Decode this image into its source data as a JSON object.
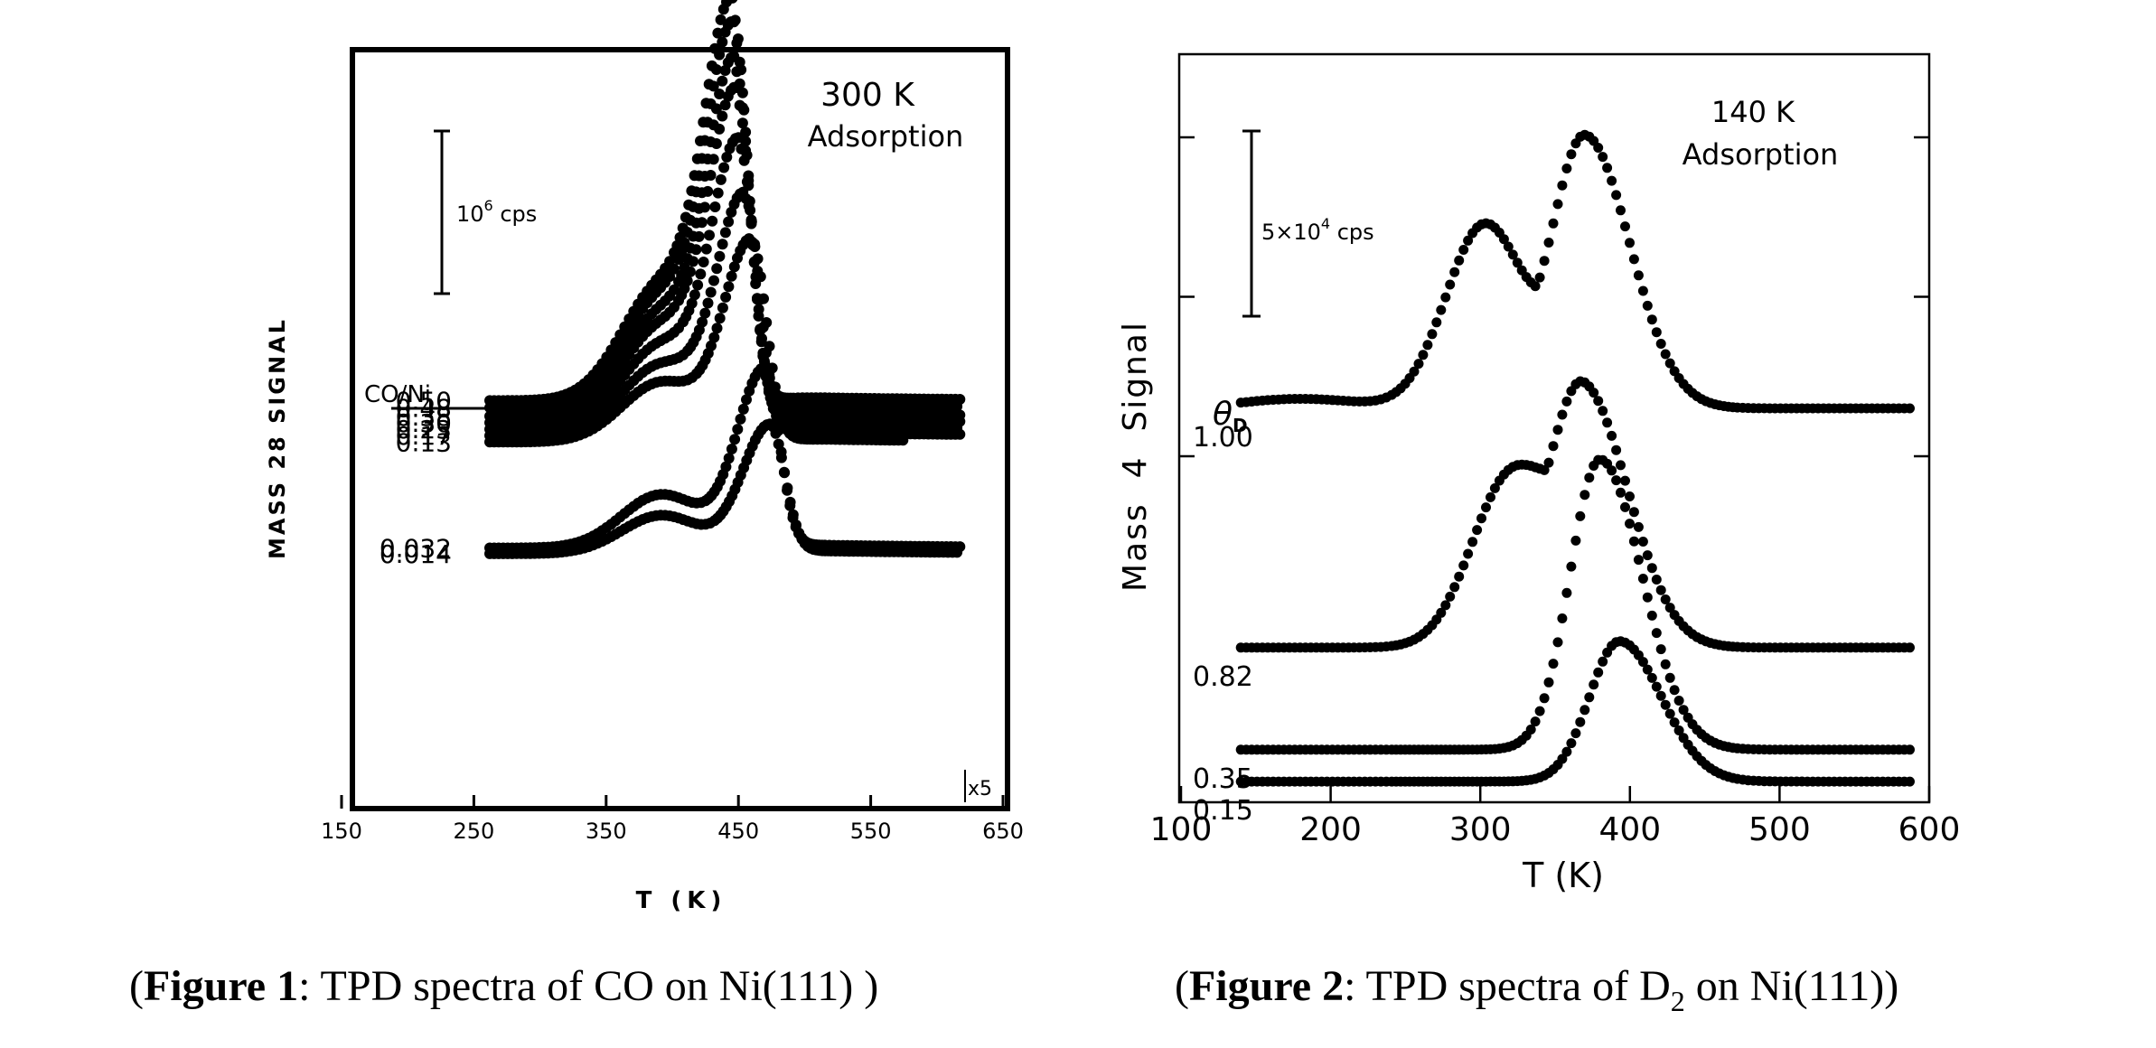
{
  "chart_data": [
    {
      "type": "line",
      "caption": {
        "open": "(",
        "bold": "Figure 1",
        "rest": ": TPD spectra of CO on Ni(111) )"
      },
      "title": "300 K",
      "subtitle": "Adsorption",
      "xlabel": "T (K)",
      "ylabel": "MASS 28 SIGNAL",
      "xlim": [
        150,
        650
      ],
      "x_ticks": [
        "150",
        "250",
        "350",
        "450",
        "550",
        "650"
      ],
      "scale_bar": "10^6 cps",
      "legend_title": "CO/Ni",
      "multiplier": "x5",
      "series": [
        {
          "name": "0.50",
          "label": "0.50",
          "baseline": 0.5,
          "peak_T": 446,
          "peak": 5.8,
          "x_end": 618
        },
        {
          "name": "0.48",
          "label": "0.48",
          "baseline": 0.4,
          "peak_T": 447,
          "peak": 5.5,
          "x_end": 618
        },
        {
          "name": "0.38",
          "label": "0.38",
          "baseline": 0.28,
          "peak_T": 448,
          "peak": 5.05,
          "x_end": 618
        },
        {
          "name": "0.30",
          "label": "0.30",
          "baseline": 0.19,
          "peak_T": 449,
          "peak": 4.65,
          "x_end": 618
        },
        {
          "name": "0.23",
          "label": "0.23",
          "baseline": 0.1,
          "peak_T": 451,
          "peak": 4.0,
          "x_end": 618
        },
        {
          "name": "0.17",
          "label": "0.17",
          "baseline": 0.01,
          "peak_T": 455,
          "peak": 3.3,
          "x_end": 618
        },
        {
          "name": "0.13",
          "label": "0.13",
          "baseline": -0.08,
          "peak_T": 460,
          "peak": 2.7,
          "x_end": 575
        },
        {
          "name": "0.032",
          "label": "0.032",
          "baseline": -1.56,
          "peak_T": 470,
          "peak": 0.93,
          "x_end": 618
        },
        {
          "name": "0.014",
          "label": "0.014",
          "baseline": -1.64,
          "peak_T": 474,
          "peak": 0.15,
          "x_end": 618
        }
      ]
    },
    {
      "type": "line",
      "caption": {
        "open": "(",
        "bold": "Figure 2",
        "rest_a": ": TPD spectra of D",
        "sub": "2",
        "rest_b": " on Ni(111))"
      },
      "title": "140 K",
      "subtitle": "Adsorption",
      "xlabel": "T (K)",
      "ylabel": "Mass  4  Signal",
      "xlim": [
        100,
        600
      ],
      "x_ticks": [
        "100",
        "200",
        "300",
        "400",
        "500",
        "600"
      ],
      "scale_bar": "5×10^4 cps",
      "legend_title": "θD",
      "series": [
        {
          "name": "1.00",
          "label": "1.00",
          "baseline": 0.15,
          "peak_T": 370,
          "peak": 1.0,
          "shoulder_T": 303,
          "shoulder": 0.87
        },
        {
          "name": "0.82",
          "label": "0.82",
          "baseline": -0.6,
          "peak_T": 369,
          "peak": 0.2,
          "shoulder_T": 320,
          "shoulder": 0.06
        },
        {
          "name": "0.35",
          "label": "0.35",
          "baseline": -0.92,
          "peak_T": 380,
          "peak": -0.01
        },
        {
          "name": "0.15",
          "label": "0.15",
          "baseline": -1.02,
          "peak_T": 393,
          "peak": -0.58
        }
      ]
    }
  ]
}
